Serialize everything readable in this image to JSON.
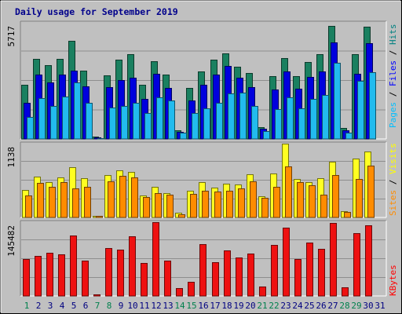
{
  "chart_data": {
    "type": "bar",
    "title": "Daily usage for September 2019",
    "categories": [
      "1",
      "2",
      "3",
      "4",
      "5",
      "6",
      "7",
      "8",
      "9",
      "10",
      "11",
      "12",
      "13",
      "14",
      "15",
      "16",
      "17",
      "18",
      "19",
      "20",
      "21",
      "22",
      "23",
      "24",
      "25",
      "26",
      "27",
      "28",
      "29",
      "30",
      "31"
    ],
    "weekend_days": [
      "1",
      "7",
      "8",
      "14",
      "15",
      "21",
      "22",
      "28",
      "29"
    ],
    "panels": [
      {
        "name": "hits-files-pages",
        "ymax": 5717,
        "ymax_label": "5717",
        "legend": [
          {
            "text": "Pages",
            "color": "#00bfff"
          },
          {
            "text": " / ",
            "color": "#000000"
          },
          {
            "text": "Files",
            "color": "#0000ff"
          },
          {
            "text": " / ",
            "color": "#000000"
          },
          {
            "text": "Hits",
            "color": "#008080"
          }
        ],
        "series": [
          {
            "name": "Hits",
            "color": "#1a8060",
            "values": [
              2670,
              3940,
              3630,
              3940,
              4810,
              3350,
              150,
              3120,
              3900,
              4160,
              2650,
              3830,
              3170,
              450,
              2520,
              3330,
              3870,
              4180,
              3550,
              3230,
              610,
              3090,
              3980,
              3080,
              3780,
              4170,
              5530,
              560,
              4150,
              5500,
              0
            ]
          },
          {
            "name": "Files",
            "color": "#0000dd",
            "values": [
              1790,
              3180,
              2800,
              3170,
              3340,
              2580,
              110,
              2560,
              2880,
              3020,
              1990,
              3200,
              2510,
              380,
              1920,
              2660,
              3160,
              3600,
              3020,
              2540,
              520,
              2430,
              3320,
              2460,
              3040,
              3310,
              4720,
              460,
              3200,
              4670,
              0
            ]
          },
          {
            "name": "Pages",
            "color": "#22bbee",
            "values": [
              1100,
              2010,
              1650,
              2100,
              2770,
              1790,
              80,
              1580,
              1620,
              1800,
              1310,
              2040,
              1910,
              330,
              1300,
              1510,
              1810,
              2230,
              2300,
              1650,
              430,
              1480,
              2050,
              1520,
              1970,
              2170,
              3740,
              360,
              2860,
              3290,
              0
            ]
          }
        ]
      },
      {
        "name": "sites-visits",
        "ymax": 1138,
        "ymax_label": "1138",
        "legend": [
          {
            "text": "Sites",
            "color": "#ff8c00"
          },
          {
            "text": " / ",
            "color": "#000000"
          },
          {
            "text": "Visits",
            "color": "#ffff00"
          }
        ],
        "series": [
          {
            "name": "Visits",
            "color": "#ffff22",
            "values": [
              425,
              630,
              545,
              620,
              770,
              600,
              40,
              655,
              720,
              705,
              345,
              470,
              385,
              80,
              415,
              540,
              460,
              520,
              505,
              665,
              335,
              675,
              1138,
              590,
              540,
              605,
              850,
              105,
              900,
              1010,
              0
            ]
          },
          {
            "name": "Sites",
            "color": "#ff8c00",
            "values": [
              345,
              530,
              480,
              550,
              450,
              470,
              35,
              560,
              640,
              620,
              315,
              385,
              360,
              65,
              370,
              420,
              405,
              420,
              455,
              555,
              305,
              470,
              785,
              545,
              495,
              350,
              650,
              95,
              590,
              795,
              0
            ]
          }
        ]
      },
      {
        "name": "kbytes",
        "ymax": 145482,
        "ymax_label": "145482",
        "legend": [
          {
            "text": "KBytes",
            "color": "#ff0000"
          }
        ],
        "series": [
          {
            "name": "KBytes",
            "color": "#ee1111",
            "values": [
              73000,
              78500,
              85500,
              82500,
              118000,
              69500,
              4000,
              93500,
              91000,
              116000,
              64500,
              145482,
              69500,
              16000,
              29500,
              101500,
              66500,
              89000,
              76000,
              83500,
              19500,
              99500,
              133000,
              72000,
              104500,
              92500,
              143000,
              17500,
              122000,
              138000,
              0
            ]
          }
        ]
      }
    ]
  }
}
